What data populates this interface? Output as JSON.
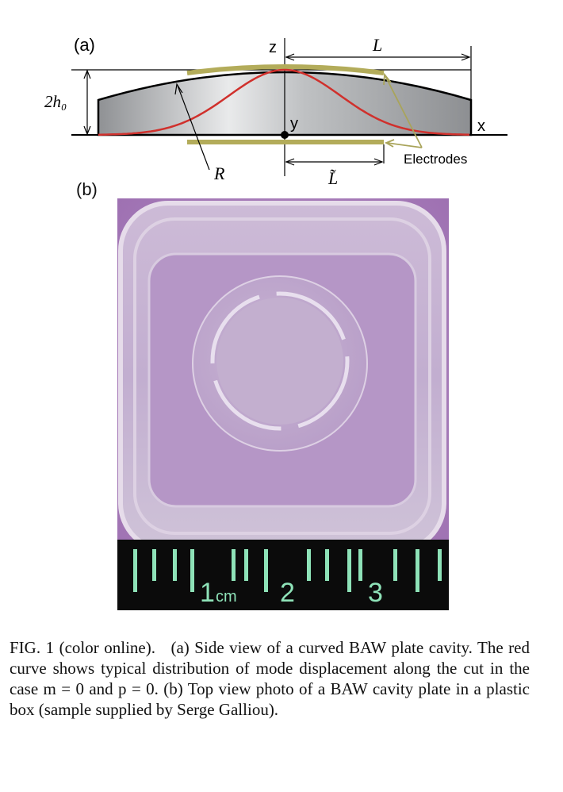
{
  "panel_a": {
    "label": "(a)",
    "axis_x": "x",
    "axis_y": "y",
    "axis_z": "z",
    "thickness_label": "2h₀",
    "length_label": "L",
    "electrode_length_label": "L̃",
    "radius_label": "R",
    "electrodes_label": "Electrodes",
    "colors": {
      "plate_fill": "#c8c9cb",
      "mode_curve": "#d0302c",
      "electrode": "#b3ac5a",
      "arrow_to_electrodes": "#a9a45a"
    }
  },
  "panel_b": {
    "label": "(b)",
    "ruler_numbers": [
      "1",
      "2",
      "3"
    ],
    "ruler_unit": "cm",
    "colors": {
      "background": "#a57bb6",
      "ruler": "#0b0b0b",
      "ruler_marks": "#8ee2b8"
    }
  },
  "caption": {
    "text": "FIG. 1 (color online).   (a) Side view of a curved BAW plate cavity. The red curve shows typical distribution of mode displacement along the cut in the case m = 0 and p = 0. (b) Top view photo of a BAW cavity plate in a plastic box (sample supplied by Serge Galliou)."
  }
}
